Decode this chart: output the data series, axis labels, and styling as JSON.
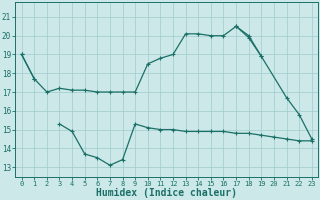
{
  "xlabel": "Humidex (Indice chaleur)",
  "background_color": "#cce8e8",
  "grid_color": "#a0cccc",
  "line_color": "#1a7068",
  "line1": [
    19,
    17.7,
    null,
    null,
    null,
    null,
    null,
    null,
    null,
    null,
    null,
    null,
    null,
    null,
    null,
    null,
    null,
    null,
    null,
    null,
    null,
    null,
    null,
    null
  ],
  "line2": [
    19,
    17.7,
    17.0,
    17.2,
    17.1,
    17.1,
    17.0,
    17.0,
    17.0,
    17.0,
    18.5,
    18.8,
    19.0,
    20.1,
    20.1,
    20.0,
    20.0,
    20.5,
    19.9,
    18.9,
    null,
    null,
    null,
    null
  ],
  "line3": [
    null,
    null,
    null,
    null,
    null,
    null,
    null,
    null,
    null,
    null,
    null,
    null,
    null,
    null,
    null,
    null,
    null,
    20.5,
    20.0,
    18.9,
    null,
    16.7,
    15.8,
    14.5
  ],
  "line4": [
    null,
    null,
    null,
    15.3,
    14.9,
    13.7,
    13.5,
    13.1,
    13.4,
    15.3,
    15.1,
    15.0,
    15.0,
    14.9,
    14.9,
    14.9,
    14.9,
    14.8,
    14.8,
    14.7,
    14.6,
    14.5,
    14.4,
    14.4
  ],
  "ylim": [
    12.5,
    21.8
  ],
  "yticks": [
    13,
    14,
    15,
    16,
    17,
    18,
    19,
    20,
    21
  ],
  "xlim": [
    -0.5,
    23.5
  ],
  "xticks": [
    0,
    1,
    2,
    3,
    4,
    5,
    6,
    7,
    8,
    9,
    10,
    11,
    12,
    13,
    14,
    15,
    16,
    17,
    18,
    19,
    20,
    21,
    22,
    23
  ],
  "xlabel_fontsize": 7,
  "tick_fontsize": 5.5
}
